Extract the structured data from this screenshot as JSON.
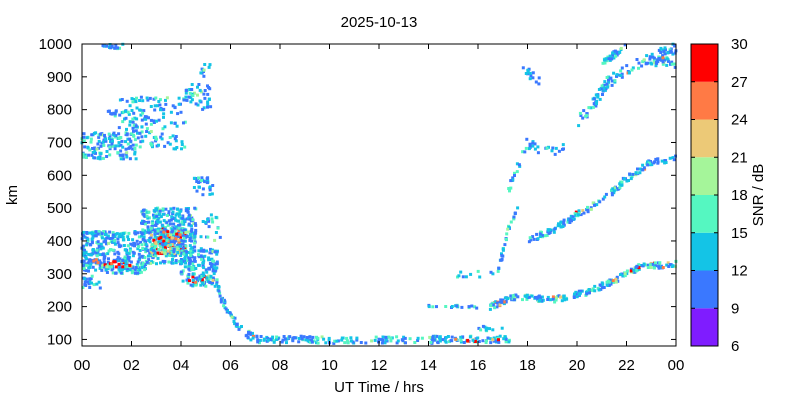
{
  "chart_data": {
    "type": "heatmap",
    "title": "2025-10-13",
    "xlabel": "UT Time / hrs",
    "ylabel": "km",
    "xlim": [
      0,
      24
    ],
    "ylim": [
      80,
      1000
    ],
    "x_ticks": [
      "00",
      "02",
      "04",
      "06",
      "08",
      "10",
      "12",
      "14",
      "16",
      "18",
      "20",
      "22",
      "00"
    ],
    "y_ticks": [
      "100",
      "200",
      "300",
      "400",
      "500",
      "600",
      "700",
      "800",
      "900",
      "1000"
    ],
    "colorbar": {
      "label": "SNR / dB",
      "range": [
        6,
        30
      ],
      "ticks": [
        "6",
        "9",
        "12",
        "15",
        "18",
        "21",
        "24",
        "27",
        "30"
      ],
      "colors": [
        "#7f1cff",
        "#3a78ff",
        "#14c4e6",
        "#55f7c1",
        "#a5f59a",
        "#ecc977",
        "#ff7a45",
        "#ff0000"
      ]
    },
    "features": [
      {
        "name": "dense F-region echoes",
        "t": [
          0,
          5.5
        ],
        "km": [
          260,
          500
        ],
        "snr": "9-30"
      },
      {
        "name": "upper echoes",
        "t": [
          0,
          2.2
        ],
        "km": [
          640,
          740
        ],
        "snr": "9-15"
      },
      {
        "name": "upper echoes",
        "t": [
          1.6,
          4.2
        ],
        "km": [
          660,
          840
        ],
        "snr": "9-15"
      },
      {
        "name": "near-range trace",
        "t": [
          6,
          17.5
        ],
        "km": [
          80,
          120
        ],
        "snr": "9-15"
      },
      {
        "name": "afternoon traces",
        "t": [
          17,
          24
        ],
        "km": [
          200,
          1000
        ],
        "snr": "9-30"
      }
    ]
  }
}
